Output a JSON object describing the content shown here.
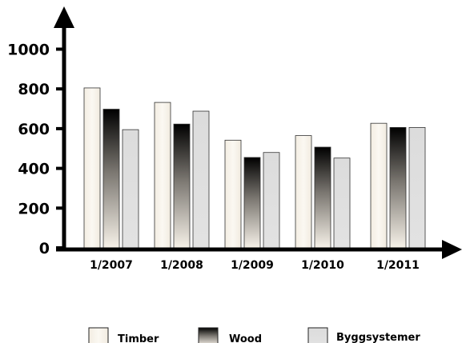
{
  "chart_data": {
    "type": "bar",
    "categories": [
      "1/2007",
      "1/2008",
      "1/2009",
      "1/2010",
      "1/2011"
    ],
    "series": [
      {
        "name": "Timber",
        "values": [
          805,
          732,
          542,
          565,
          627
        ],
        "color": "#f7f2e9"
      },
      {
        "name": "Wood",
        "values": [
          698,
          623,
          455,
          507,
          606
        ],
        "color": "#000000"
      },
      {
        "name": "Byggsystemer",
        "values": [
          595,
          688,
          480,
          452,
          606
        ],
        "color": "#dedede"
      }
    ],
    "y_ticks": [
      "0",
      "200",
      "400",
      "600",
      "800",
      "1000"
    ],
    "ylim": [
      0,
      1100
    ],
    "grid": false,
    "legend_position": "bottom"
  }
}
